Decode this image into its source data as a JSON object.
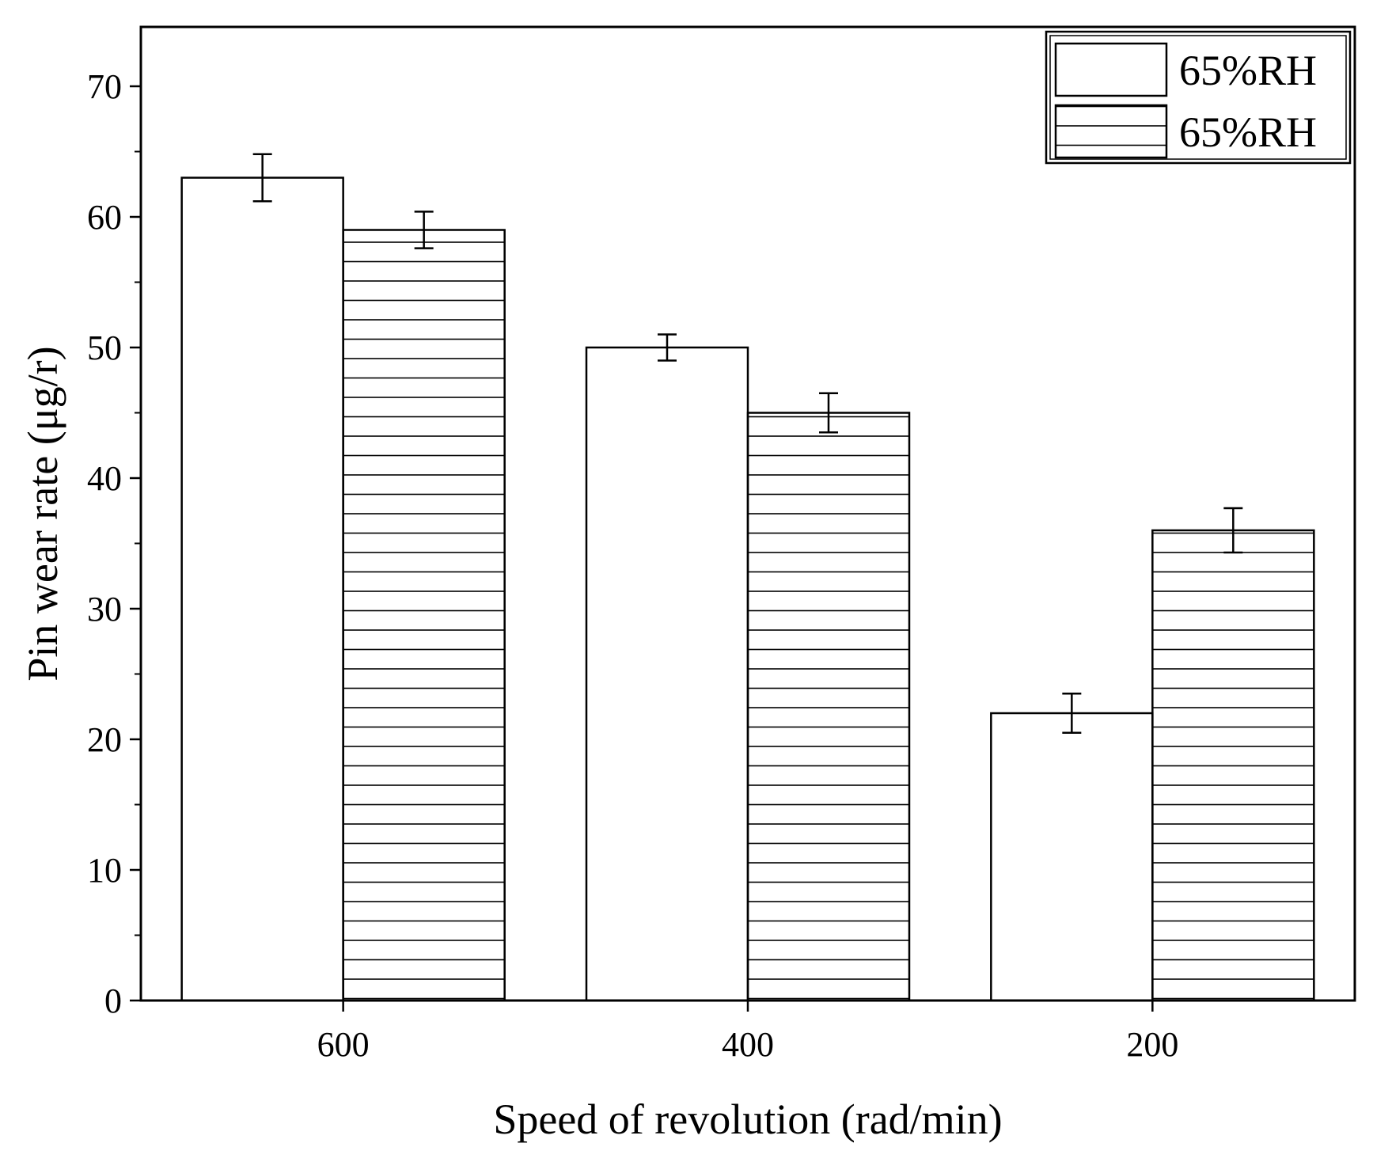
{
  "chart_data": {
    "type": "bar",
    "title": "",
    "xlabel": "Speed of revolution (rad/min)",
    "ylabel": "Pin wear rate (μg/r)",
    "categories": [
      "600",
      "400",
      "200"
    ],
    "ylim": [
      0,
      75
    ],
    "yticks": [
      0,
      10,
      20,
      30,
      40,
      50,
      60,
      70
    ],
    "ytick_labels": [
      "0",
      "10",
      "20",
      "30",
      "40",
      "50",
      "60",
      "70"
    ],
    "grid": false,
    "legend_position": "top-right",
    "series": [
      {
        "name": "65%RH",
        "pattern": "none",
        "values": [
          63,
          50,
          22
        ],
        "errors": [
          1.8,
          1.0,
          1.5
        ]
      },
      {
        "name": "65%RH",
        "pattern": "horizontal-lines",
        "values": [
          59,
          45,
          36
        ],
        "errors": [
          1.4,
          1.5,
          1.7
        ]
      }
    ],
    "colors": {
      "stroke": "#000000",
      "fill": "#ffffff"
    }
  }
}
